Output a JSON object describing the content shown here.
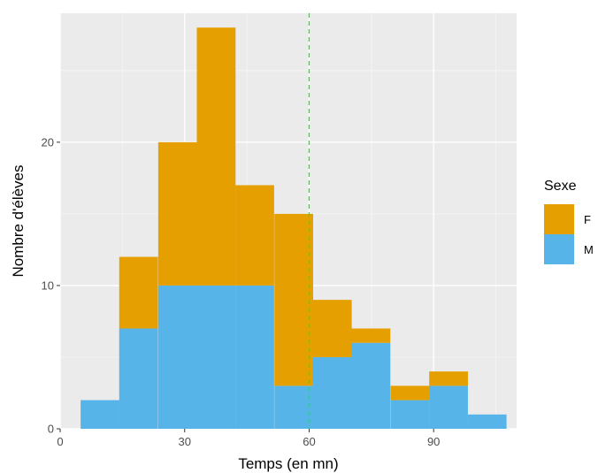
{
  "chart_data": {
    "type": "bar",
    "subtype": "stacked-histogram",
    "xlabel": "Temps (en mn)",
    "ylabel": "Nombre d'élèves",
    "xlim": [
      0,
      110
    ],
    "ylim": [
      0,
      29
    ],
    "x_ticks": [
      0,
      30,
      60,
      90
    ],
    "y_ticks": [
      0,
      10,
      20
    ],
    "bin_width": 9.33,
    "bin_centers": [
      9.6,
      18.9,
      28.3,
      37.6,
      46.9,
      56.3,
      65.6,
      74.9,
      84.3,
      93.6,
      102.9
    ],
    "series": [
      {
        "name": "F",
        "color": "#E69F00",
        "values": [
          0,
          5,
          10,
          18,
          7,
          12,
          4,
          1,
          1,
          1,
          0
        ]
      },
      {
        "name": "M",
        "color": "#56B4E9",
        "values": [
          2,
          7,
          10,
          10,
          10,
          3,
          5,
          6,
          2,
          3,
          1
        ]
      }
    ],
    "reference_line": {
      "x": 60,
      "color": "#00FF00",
      "style": "dashed"
    },
    "legend": {
      "title": "Sexe",
      "position": "right"
    },
    "grid": true,
    "panel_background": "#EBEBEB"
  }
}
